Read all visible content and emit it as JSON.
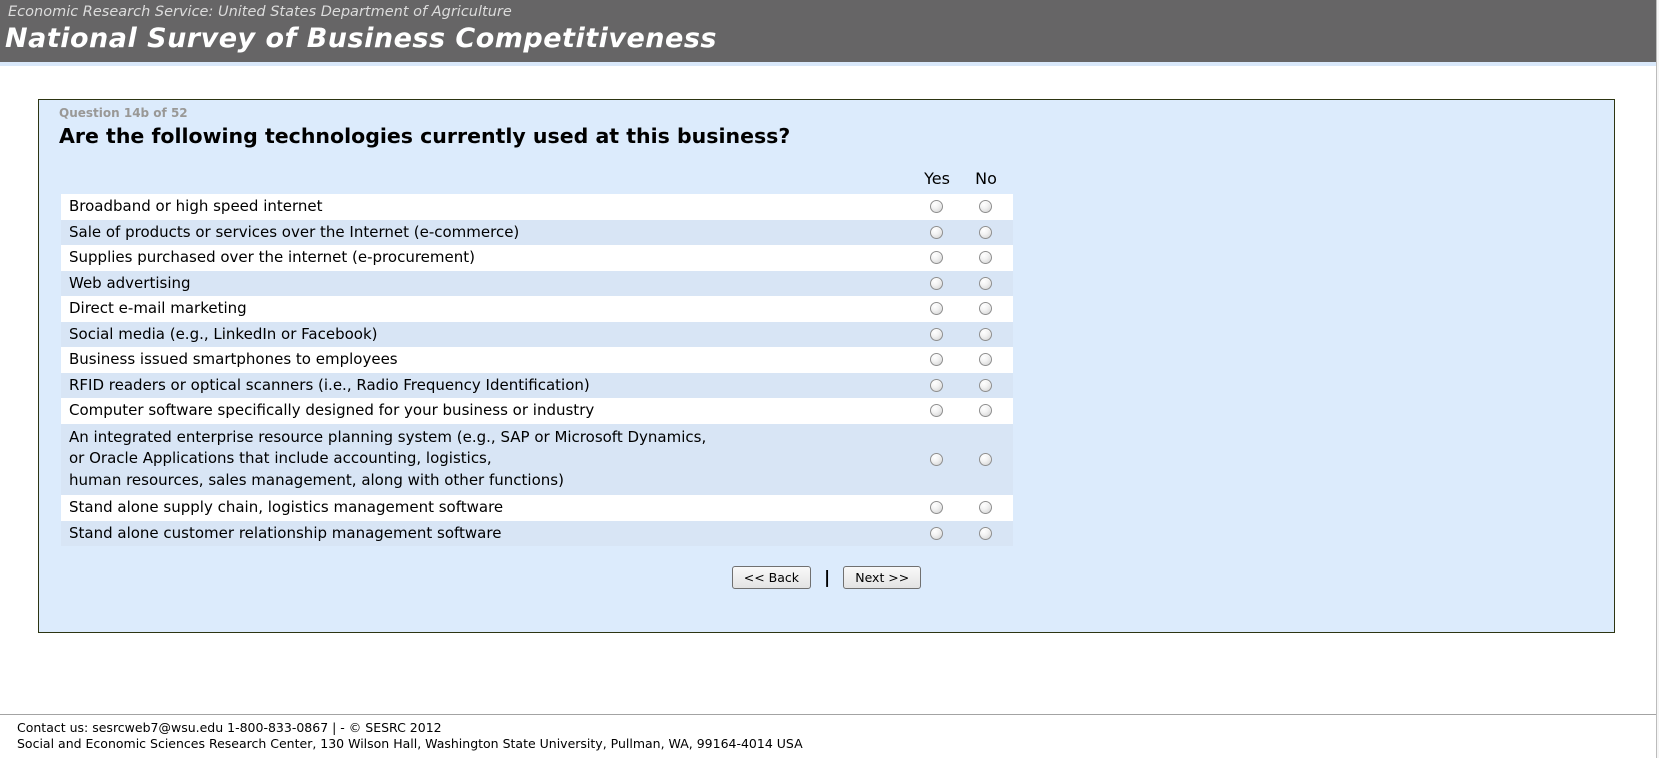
{
  "header": {
    "agency": "Economic Research Service: United States Department of Agriculture",
    "title": "National Survey of Business Competitiveness"
  },
  "question": {
    "progress": "Question 14b of 52",
    "text": "Are the following technologies currently used at this business?",
    "columns": [
      "Yes",
      "No"
    ],
    "items": [
      "Broadband or high speed internet",
      "Sale of products or services over the Internet (e-commerce)",
      "Supplies purchased over the internet (e-procurement)",
      "Web advertising",
      "Direct e-mail marketing",
      "Social media (e.g., LinkedIn or Facebook)",
      "Business issued smartphones to employees",
      "RFID readers or optical scanners (i.e., Radio Frequency Identification)",
      "Computer software specifically designed for your business or industry",
      "An integrated enterprise resource planning system (e.g., SAP or Microsoft Dynamics,\nor Oracle Applications that include accounting, logistics,\nhuman resources, sales management, along with other functions)",
      "Stand alone supply chain, logistics management software",
      "Stand alone customer relationship management software"
    ]
  },
  "buttons": {
    "back": "<< Back",
    "separator": "|",
    "next": "Next >>"
  },
  "footer": {
    "line1": "Contact us: sesrcweb7@wsu.edu 1-800-833-0867 | - © SESRC 2012",
    "line2": "Social and Economic Sciences Research Center, 130 Wilson Hall, Washington State University, Pullman, WA, 99164-4014 USA"
  },
  "colors": {
    "header_bg": "#666566",
    "panel_bg": "#dcebfc",
    "row_blue": "#d8e5f5",
    "panel_border": "#2d3512",
    "accent_strip": "#d9e8fa"
  }
}
